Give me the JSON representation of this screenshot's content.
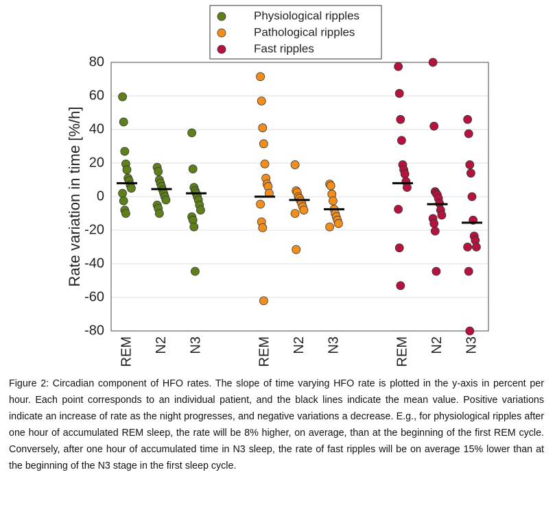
{
  "chart_data": {
    "type": "strip",
    "ylabel": "Rate variation in time [%/h]",
    "ylim": [
      -80,
      80
    ],
    "yticks": [
      -80,
      -60,
      -40,
      -20,
      0,
      20,
      40,
      60,
      80
    ],
    "grid": true,
    "legend": "top",
    "series": [
      {
        "name": "Physiological ripples",
        "color": "#5f7f1a",
        "categories": [
          "REM",
          "N2",
          "N3"
        ],
        "points": [
          [
            59.5,
            44.5,
            27,
            19.5,
            16,
            11,
            9.5,
            7,
            5,
            2,
            -2.5,
            -8,
            -10
          ],
          [
            17.5,
            15,
            10,
            8,
            6,
            4,
            2,
            0,
            -2,
            -5,
            -7,
            -10
          ],
          [
            38,
            16.5,
            5.5,
            3.5,
            2,
            0,
            -2,
            -5,
            -8,
            -12,
            -14,
            -18,
            -44.5
          ]
        ],
        "means": [
          8,
          4.5,
          2
        ]
      },
      {
        "name": "Pathological ripples",
        "color": "#f28e1c",
        "categories": [
          "REM",
          "N2",
          "N3"
        ],
        "points": [
          [
            71.5,
            57,
            41,
            31.5,
            19.5,
            11,
            7.5,
            6,
            2,
            -4.5,
            -15,
            -18.5,
            -62
          ],
          [
            19,
            3.5,
            2.5,
            0,
            -1,
            -2.5,
            -4,
            -6,
            -8,
            -10,
            -31.5
          ],
          [
            7.5,
            6.5,
            1.5,
            -2.5,
            -7.5,
            -10,
            -12,
            -14,
            -16,
            -18
          ]
        ],
        "means": [
          0,
          -2,
          -7.5
        ]
      },
      {
        "name": "Fast ripples",
        "color": "#b5123e",
        "categories": [
          "REM",
          "N2",
          "N3"
        ],
        "points": [
          [
            77.5,
            61.5,
            46,
            33.5,
            19,
            16,
            13.5,
            9,
            5.5,
            -7.5,
            -30.5,
            -53
          ],
          [
            80,
            42,
            3,
            2,
            1,
            -1,
            -4,
            -8,
            -11,
            -13,
            -16,
            -20.5,
            -44.5
          ],
          [
            46,
            37.5,
            19,
            14,
            0,
            -14,
            -23.5,
            -26,
            -30,
            -30,
            -44.5,
            -80
          ]
        ],
        "means": [
          8,
          -4.5,
          -15.5
        ]
      }
    ]
  },
  "caption": "Figure 2: Circadian component of HFO rates. The slope of time varying HFO rate is plotted in the y-axis in percent per hour. Each point corresponds to an individual patient, and the black lines indicate the mean value. Positive variations indicate an increase of rate as the night progresses, and negative variations a decrease. E.g., for physiological ripples after one hour of accumulated REM sleep, the rate will be 8% higher, on average, than at the beginning of the first REM cycle. Conversely, after one hour of accumulated time in N3 sleep, the rate of fast ripples will be on average 15% lower than at the beginning of the N3 stage in the first sleep cycle."
}
